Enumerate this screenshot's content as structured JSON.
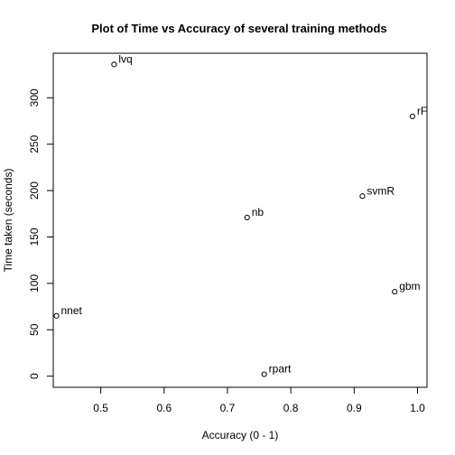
{
  "chart_data": {
    "type": "scatter",
    "title": "Plot of Time vs Accuracy of several training methods",
    "xlabel": "Accuracy (0 - 1)",
    "ylabel": "Time taken (seconds)",
    "xlim": [
      0.425,
      1.015
    ],
    "ylim": [
      -12,
      348
    ],
    "x_ticks": [
      0.5,
      0.6,
      0.7,
      0.8,
      0.9,
      1.0
    ],
    "x_tick_labels": [
      "0.5",
      "0.6",
      "0.7",
      "0.8",
      "0.9",
      "1.0"
    ],
    "y_ticks": [
      0,
      50,
      100,
      150,
      200,
      250,
      300
    ],
    "y_tick_labels": [
      "0",
      "50",
      "100",
      "150",
      "200",
      "250",
      "300"
    ],
    "grid": false,
    "points": [
      {
        "label": "lvq",
        "x": 0.521,
        "y": 336
      },
      {
        "label": "rF",
        "x": 0.992,
        "y": 280
      },
      {
        "label": "svmR",
        "x": 0.913,
        "y": 194
      },
      {
        "label": "nb",
        "x": 0.731,
        "y": 171
      },
      {
        "label": "gbm",
        "x": 0.964,
        "y": 91
      },
      {
        "label": "nnet",
        "x": 0.43,
        "y": 65
      },
      {
        "label": "rpart",
        "x": 0.758,
        "y": 2
      }
    ]
  }
}
